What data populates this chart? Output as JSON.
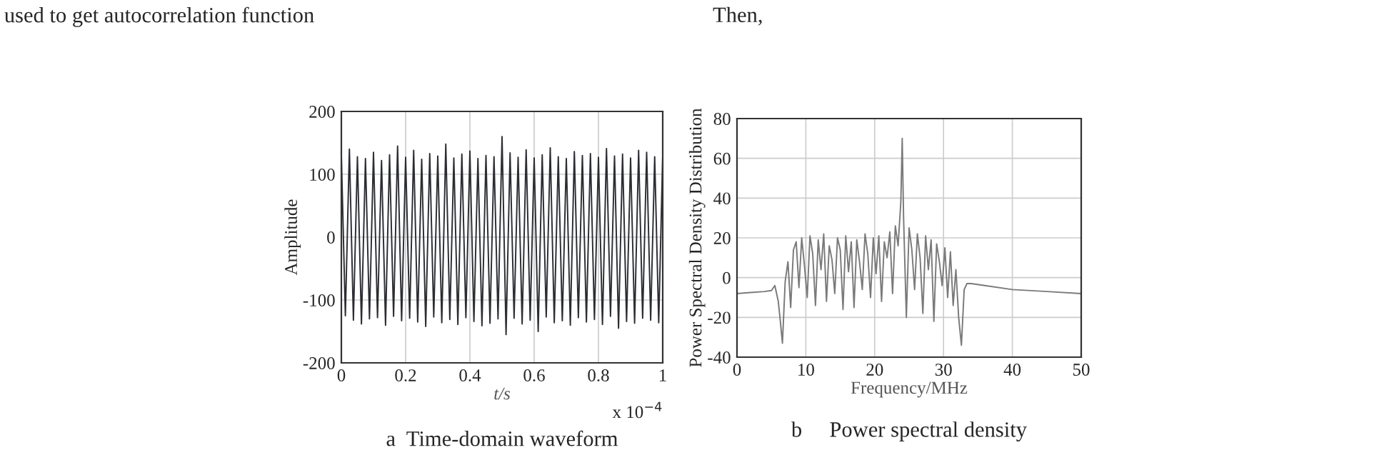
{
  "chart_data": [
    {
      "type": "line",
      "xlabel": "t/s",
      "ylabel": "Amplitude",
      "xlim": [
        0,
        1
      ],
      "ylim": [
        -200,
        200
      ],
      "xticks": [
        0,
        0.2,
        0.4,
        0.6,
        0.8,
        1
      ],
      "yticks": [
        -200,
        -100,
        0,
        100,
        200
      ],
      "grid": true,
      "annotations": [
        "a  Time-domain waveform",
        "x 10$^{−4}$",
        "used to get autocorrelation function",
        "Then,"
      ],
      "series": [
        {
          "color": "#2b2d33",
          "x": [
            0,
            0.0125,
            0.025,
            0.0375,
            0.05,
            0.0625,
            0.075,
            0.0875,
            0.1,
            0.1125,
            0.125,
            0.1375,
            0.15,
            0.1625,
            0.175,
            0.1875,
            0.2,
            0.2125,
            0.225,
            0.2375,
            0.25,
            0.2625,
            0.275,
            0.2875,
            0.3,
            0.3125,
            0.325,
            0.3375,
            0.35,
            0.3625,
            0.375,
            0.3875,
            0.4,
            0.4125,
            0.425,
            0.4375,
            0.45,
            0.4625,
            0.475,
            0.4875,
            0.5,
            0.5125,
            0.525,
            0.5375,
            0.55,
            0.5625,
            0.575,
            0.5875,
            0.6,
            0.6125,
            0.625,
            0.6375,
            0.65,
            0.6625,
            0.675,
            0.6875,
            0.7,
            0.7125,
            0.725,
            0.7375,
            0.75,
            0.7625,
            0.775,
            0.7875,
            0.8,
            0.8125,
            0.825,
            0.8375,
            0.85,
            0.8625,
            0.875,
            0.8875,
            0.9,
            0.9125,
            0.925,
            0.9375,
            0.95,
            0.9625,
            0.975,
            0.9875,
            1
          ],
          "values": [
            130,
            -125,
            140,
            -132,
            128,
            -138,
            125,
            -130,
            135,
            -128,
            122,
            -140,
            131,
            -126,
            145,
            -133,
            127,
            -129,
            138,
            -135,
            124,
            -142,
            133,
            -127,
            129,
            -136,
            148,
            -131,
            126,
            -139,
            132,
            -128,
            137,
            -134,
            125,
            -141,
            130,
            -137,
            128,
            -130,
            160,
            -155,
            134,
            -129,
            127,
            -138,
            139,
            -132,
            126,
            -150,
            131,
            -127,
            142,
            -136,
            128,
            -133,
            125,
            -140,
            136,
            -128,
            130,
            -135,
            133,
            -131,
            127,
            -139,
            141,
            -126,
            129,
            -145,
            132,
            -134,
            126,
            -137,
            138,
            -129,
            135,
            -132,
            128,
            -136,
            130
          ]
        }
      ]
    },
    {
      "type": "line",
      "xlabel": "Frequency/MHz",
      "ylabel": "Power Spectral Density Distribution",
      "xlim": [
        0,
        50
      ],
      "ylim": [
        -40,
        80
      ],
      "xticks": [
        0,
        10,
        20,
        30,
        40,
        50
      ],
      "yticks": [
        -40,
        -20,
        0,
        20,
        40,
        60,
        80
      ],
      "grid": true,
      "annotations": [
        "b     Power spectral density"
      ],
      "series": [
        {
          "color": "#7a7a7a",
          "x": [
            0,
            2,
            4,
            5,
            5.5,
            6,
            6.3,
            6.6,
            7,
            7.4,
            7.8,
            8.2,
            8.6,
            9,
            9.4,
            9.8,
            10.2,
            10.6,
            11,
            11.4,
            11.8,
            12.2,
            12.6,
            13,
            13.4,
            13.8,
            14.2,
            14.6,
            15,
            15.4,
            15.8,
            16.2,
            16.6,
            17,
            17.4,
            17.8,
            18.2,
            18.6,
            19,
            19.4,
            19.8,
            20.2,
            20.6,
            21,
            21.4,
            21.8,
            22.2,
            22.6,
            23,
            23.4,
            23.8,
            24,
            24.2,
            24.6,
            25,
            25.4,
            25.8,
            26.2,
            26.6,
            27,
            27.4,
            27.8,
            28.2,
            28.6,
            29,
            29.4,
            29.8,
            30.2,
            30.6,
            31,
            31.4,
            31.8,
            32.2,
            32.6,
            33,
            33.4,
            34,
            36,
            40,
            45,
            50
          ],
          "values": [
            -8,
            -7.5,
            -7,
            -6.5,
            -4,
            -12,
            -22,
            -33,
            -2,
            8,
            -15,
            14,
            18,
            -5,
            20,
            6,
            -10,
            21,
            12,
            -14,
            19,
            4,
            22,
            -12,
            16,
            9,
            -8,
            20,
            14,
            -16,
            21,
            3,
            18,
            -15,
            19,
            8,
            -6,
            22,
            12,
            -10,
            20,
            2,
            21,
            -12,
            18,
            10,
            23,
            -8,
            26,
            16,
            38,
            70,
            30,
            -20,
            25,
            14,
            -6,
            22,
            10,
            -18,
            21,
            4,
            19,
            -22,
            17,
            8,
            -4,
            15,
            -10,
            13,
            -14,
            4,
            -20,
            -34,
            -6,
            -3,
            -3,
            -4,
            -6,
            -7,
            -8
          ]
        }
      ]
    }
  ]
}
